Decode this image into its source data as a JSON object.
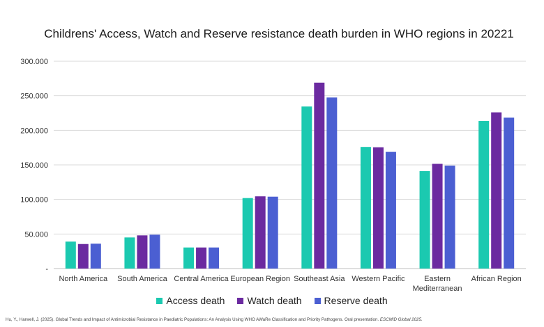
{
  "chart_data": {
    "type": "bar",
    "title": "Childrens' Access, Watch and Reserve resistance death burden in WHO regions in 20221",
    "categories": [
      "North America",
      "South America",
      "Central America",
      "European Region",
      "Southeast Asia",
      "Western Pacific",
      [
        "Eastern",
        "Mediterranean"
      ],
      "African Region"
    ],
    "series": [
      {
        "name": "Access death",
        "color": "#1bc9b0",
        "values": [
          39000,
          45000,
          30500,
          102000,
          234500,
          176000,
          141000,
          213500
        ]
      },
      {
        "name": "Watch death",
        "color": "#6b2aa0",
        "values": [
          35500,
          48000,
          30500,
          104500,
          269000,
          175500,
          151500,
          226000
        ]
      },
      {
        "name": "Reserve death",
        "color": "#4b5fd2",
        "values": [
          36000,
          49000,
          30500,
          104000,
          247500,
          169000,
          149000,
          218500
        ]
      }
    ],
    "ylim": [
      0,
      300000
    ],
    "yticks": [
      0,
      50000,
      100000,
      150000,
      200000,
      250000,
      300000
    ],
    "ytick_labels": [
      "-",
      "50.000",
      "100.000",
      "150.000",
      "200.000",
      "250.000",
      "300.000"
    ],
    "grid": true,
    "legend": "bottom"
  },
  "citation": {
    "text": "Hu, Y., Harwell, J. (2025). Global Trends and Impact of Antimicrobial Resistance in Paediatric Populations: An Analysis Using WHO AWaRe Classification and Priority Pathogens. Oral presentation. ",
    "italic": "ESCMID Global 2025."
  }
}
